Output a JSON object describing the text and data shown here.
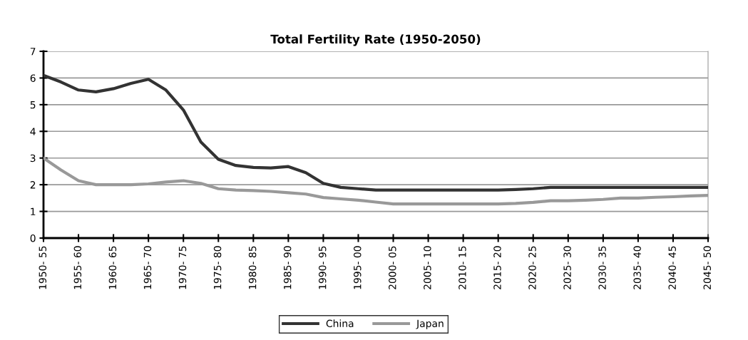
{
  "chart_data": {
    "type": "line",
    "title": "Total Fertility Rate (1950-2050)",
    "categories": [
      "1950- 55",
      null,
      "1955- 60",
      null,
      "1960- 65",
      null,
      "1965- 70",
      null,
      "1970- 75",
      null,
      "1975- 80",
      null,
      "1980- 85",
      null,
      "1985- 90",
      null,
      "1990- 95",
      null,
      "1995- 00",
      null,
      "2000- 05",
      null,
      "2005- 10",
      null,
      "2010- 15",
      null,
      "2015- 20",
      null,
      "2020- 25",
      null,
      "2025- 30",
      null,
      "2030- 35",
      null,
      "2035- 40",
      null,
      "2040- 45",
      null,
      "2045- 50"
    ],
    "series": [
      {
        "name": "China",
        "color": "#333333",
        "values": [
          6.1,
          5.85,
          5.55,
          5.48,
          5.6,
          5.8,
          5.95,
          5.55,
          4.8,
          3.6,
          2.95,
          2.72,
          2.65,
          2.63,
          2.68,
          2.45,
          2.05,
          1.9,
          1.85,
          1.8,
          1.8,
          1.8,
          1.8,
          1.8,
          1.8,
          1.8,
          1.8,
          1.82,
          1.85,
          1.9,
          1.9,
          1.9,
          1.9,
          1.9,
          1.9,
          1.9,
          1.9,
          1.9,
          1.9
        ]
      },
      {
        "name": "Japan",
        "color": "#999999",
        "values": [
          3.0,
          2.55,
          2.15,
          2.0,
          2.0,
          2.0,
          2.03,
          2.1,
          2.15,
          2.05,
          1.85,
          1.8,
          1.78,
          1.75,
          1.7,
          1.65,
          1.52,
          1.47,
          1.42,
          1.35,
          1.28,
          1.28,
          1.28,
          1.28,
          1.28,
          1.28,
          1.28,
          1.3,
          1.34,
          1.4,
          1.4,
          1.42,
          1.45,
          1.5,
          1.5,
          1.53,
          1.55,
          1.58,
          1.6
        ]
      }
    ],
    "ylim": [
      0,
      7
    ],
    "yticks": [
      0,
      1,
      2,
      3,
      4,
      5,
      6,
      7
    ],
    "grid": "y",
    "legend": "bottom",
    "marker": "none",
    "line_style": "solid"
  }
}
